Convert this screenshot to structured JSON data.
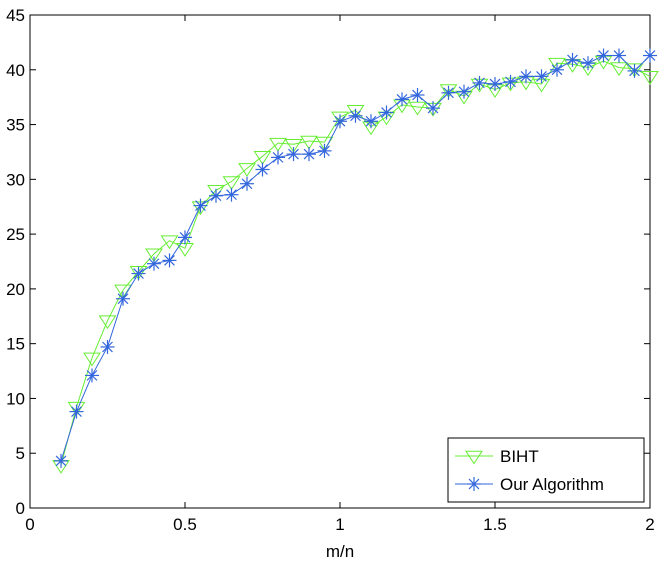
{
  "chart_data": {
    "type": "line",
    "title": "",
    "xlabel": "m/n",
    "ylabel": "",
    "xlim": [
      0,
      2
    ],
    "ylim": [
      0,
      45
    ],
    "grid": false,
    "legend_position": "bottom-right",
    "xticks": [
      0,
      0.5,
      1,
      1.5,
      2
    ],
    "xtick_labels": [
      "0",
      "0.5",
      "1",
      "1.5",
      "2"
    ],
    "yticks": [
      0,
      5,
      10,
      15,
      20,
      25,
      30,
      35,
      40,
      45
    ],
    "ytick_labels": [
      "0",
      "5",
      "10",
      "15",
      "20",
      "25",
      "30",
      "35",
      "40",
      "45"
    ],
    "x": [
      0.1,
      0.15,
      0.2,
      0.25,
      0.3,
      0.35,
      0.4,
      0.45,
      0.5,
      0.55,
      0.6,
      0.65,
      0.7,
      0.75,
      0.8,
      0.85,
      0.9,
      0.95,
      1.0,
      1.05,
      1.1,
      1.15,
      1.2,
      1.25,
      1.3,
      1.35,
      1.4,
      1.45,
      1.5,
      1.55,
      1.6,
      1.65,
      1.7,
      1.75,
      1.8,
      1.85,
      1.9,
      1.95,
      2.0
    ],
    "series": [
      {
        "name": "BIHT",
        "color": "#66ee33",
        "marker": "triangle-down",
        "values": [
          3.9,
          9.2,
          13.7,
          17.1,
          19.9,
          21.6,
          23.2,
          24.4,
          23.7,
          27.5,
          29.0,
          29.8,
          31.0,
          32.1,
          33.3,
          33.2,
          33.5,
          33.4,
          35.7,
          36.3,
          34.8,
          35.7,
          36.8,
          36.6,
          36.5,
          38.2,
          37.6,
          38.7,
          38.2,
          38.8,
          38.9,
          38.7,
          40.6,
          40.5,
          40.2,
          40.8,
          40.2,
          40.1,
          39.4
        ]
      },
      {
        "name": "Our Algorithm",
        "color": "#3366dd",
        "marker": "asterisk",
        "values": [
          4.3,
          8.8,
          12.1,
          14.7,
          19.1,
          21.4,
          22.3,
          22.6,
          24.7,
          27.6,
          28.5,
          28.6,
          29.6,
          30.9,
          32.0,
          32.3,
          32.3,
          32.6,
          35.3,
          35.8,
          35.3,
          36.1,
          37.3,
          37.7,
          36.5,
          37.9,
          38.0,
          38.8,
          38.7,
          38.9,
          39.4,
          39.4,
          40.0,
          40.9,
          40.6,
          41.3,
          41.3,
          39.9,
          41.3
        ]
      }
    ]
  }
}
